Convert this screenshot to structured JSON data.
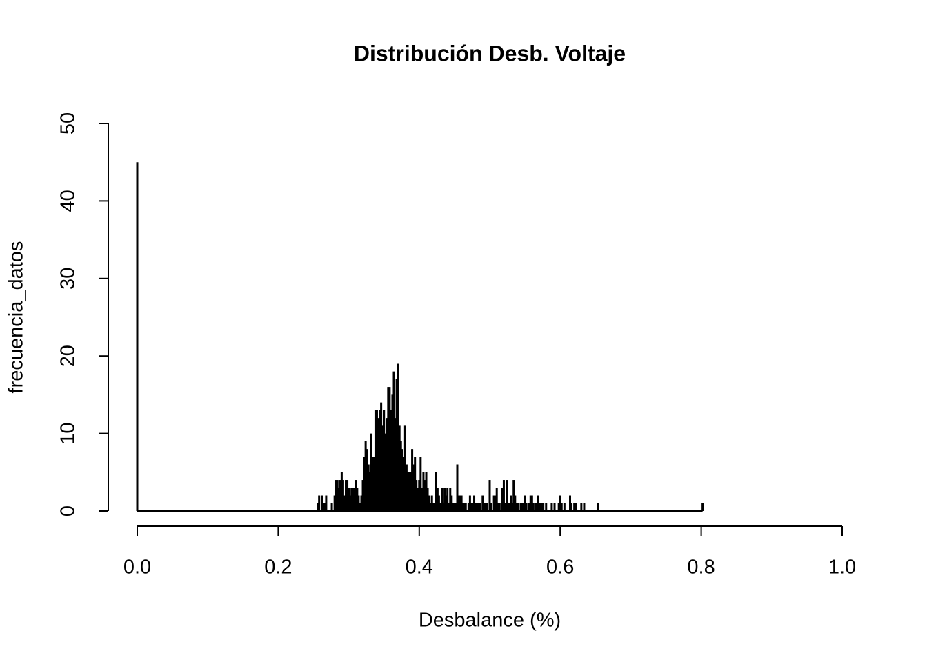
{
  "chart_data": {
    "type": "bar",
    "title": "Distribución Desb. Voltaje",
    "x_label": "Desbalance (%)",
    "y_label": "frecuencia_datos",
    "color": "#000000",
    "x": [
      0.0,
      0.256,
      0.258,
      0.262,
      0.264,
      0.266,
      0.268,
      0.276,
      0.28,
      0.282,
      0.284,
      0.286,
      0.288,
      0.29,
      0.292,
      0.294,
      0.296,
      0.298,
      0.3,
      0.302,
      0.304,
      0.306,
      0.308,
      0.31,
      0.312,
      0.314,
      0.316,
      0.318,
      0.32,
      0.322,
      0.324,
      0.326,
      0.328,
      0.33,
      0.332,
      0.334,
      0.336,
      0.338,
      0.34,
      0.342,
      0.344,
      0.346,
      0.348,
      0.35,
      0.352,
      0.354,
      0.356,
      0.358,
      0.36,
      0.362,
      0.364,
      0.366,
      0.368,
      0.37,
      0.372,
      0.374,
      0.376,
      0.378,
      0.38,
      0.382,
      0.384,
      0.386,
      0.388,
      0.39,
      0.392,
      0.394,
      0.396,
      0.398,
      0.4,
      0.402,
      0.404,
      0.406,
      0.408,
      0.41,
      0.412,
      0.414,
      0.416,
      0.418,
      0.42,
      0.422,
      0.424,
      0.426,
      0.428,
      0.43,
      0.432,
      0.434,
      0.436,
      0.438,
      0.44,
      0.442,
      0.444,
      0.446,
      0.448,
      0.45,
      0.452,
      0.454,
      0.456,
      0.458,
      0.46,
      0.462,
      0.464,
      0.466,
      0.47,
      0.472,
      0.474,
      0.476,
      0.478,
      0.48,
      0.482,
      0.484,
      0.486,
      0.49,
      0.492,
      0.494,
      0.496,
      0.5,
      0.502,
      0.506,
      0.508,
      0.51,
      0.512,
      0.514,
      0.518,
      0.52,
      0.522,
      0.524,
      0.526,
      0.528,
      0.53,
      0.532,
      0.534,
      0.536,
      0.538,
      0.54,
      0.544,
      0.546,
      0.548,
      0.55,
      0.552,
      0.556,
      0.558,
      0.56,
      0.562,
      0.566,
      0.568,
      0.57,
      0.572,
      0.574,
      0.576,
      0.58,
      0.588,
      0.592,
      0.598,
      0.6,
      0.602,
      0.606,
      0.614,
      0.616,
      0.62,
      0.622,
      0.63,
      0.634,
      0.654,
      0.802
    ],
    "values": [
      45,
      1,
      2,
      2,
      1,
      1,
      2,
      1,
      2,
      4,
      4,
      3,
      4,
      5,
      4,
      2,
      4,
      4,
      3,
      2,
      3,
      3,
      3,
      4,
      3,
      2,
      1,
      2,
      4,
      7,
      9,
      8,
      6,
      5,
      10,
      7,
      7,
      13,
      13,
      12,
      13,
      14,
      11,
      13,
      10,
      12,
      16,
      16,
      13,
      15,
      18,
      12,
      17,
      19,
      11,
      9,
      8,
      7,
      11,
      6,
      5,
      5,
      5,
      8,
      6,
      7,
      4,
      3,
      4,
      7,
      3,
      5,
      4,
      5,
      3,
      2,
      1,
      2,
      1,
      1,
      5,
      3,
      2,
      1,
      3,
      1,
      3,
      2,
      3,
      1,
      3,
      2,
      1,
      1,
      1,
      6,
      2,
      2,
      2,
      1,
      1,
      1,
      1,
      2,
      1,
      1,
      2,
      1,
      1,
      1,
      1,
      2,
      1,
      1,
      1,
      4,
      1,
      2,
      2,
      3,
      1,
      1,
      3,
      4,
      1,
      4,
      1,
      1,
      2,
      1,
      4,
      2,
      1,
      1,
      1,
      1,
      1,
      2,
      1,
      1,
      2,
      2,
      1,
      1,
      2,
      1,
      1,
      1,
      1,
      1,
      1,
      1,
      1,
      2,
      1,
      1,
      2,
      1,
      1,
      1,
      1,
      1,
      1,
      1
    ],
    "xlim": [
      0,
      1
    ],
    "xticks": [
      {
        "value": 0,
        "label": "0.0"
      },
      0.2,
      0.4,
      0.6,
      0.8,
      {
        "value": 1,
        "label": "1.0"
      }
    ],
    "ylim": [
      0,
      50
    ],
    "yticks": [
      0,
      10,
      20,
      30,
      40,
      50
    ]
  }
}
